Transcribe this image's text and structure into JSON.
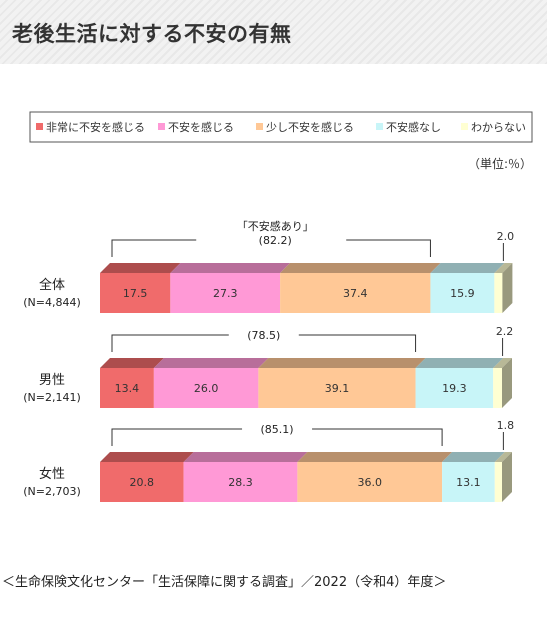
{
  "title": "老後生活に対する不安の有無",
  "unit_label": "（単位:％）",
  "source": "＜生命保険文化センター「生活保障に関する調査」／2022（令和4）年度＞",
  "chart_data": {
    "type": "bar",
    "stacked": true,
    "orientation": "horizontal",
    "xlim": [
      0,
      100
    ],
    "legend_position": "top",
    "categories": [
      "全体",
      "男性",
      "女性"
    ],
    "category_notes": [
      "(N=4,844)",
      "(N=2,141)",
      "(N=2,703)"
    ],
    "series": [
      {
        "name": "非常に不安を感じる",
        "color": "#f06b6b",
        "values": [
          17.5,
          13.4,
          20.8
        ]
      },
      {
        "name": "不安を感じる",
        "color": "#ff99d6",
        "values": [
          27.3,
          26.0,
          28.3
        ]
      },
      {
        "name": "少し不安を感じる",
        "color": "#ffc896",
        "values": [
          37.4,
          39.1,
          36.0
        ]
      },
      {
        "name": "不安感なし",
        "color": "#c8f5f8",
        "values": [
          15.9,
          19.3,
          13.1
        ]
      },
      {
        "name": "わからない",
        "color": "#ffffd2",
        "values": [
          2.0,
          2.2,
          1.8
        ]
      }
    ],
    "bracket_title": "「不安感あり」",
    "bracket_values": [
      "(82.2)",
      "(78.5)",
      "(85.1)"
    ]
  }
}
